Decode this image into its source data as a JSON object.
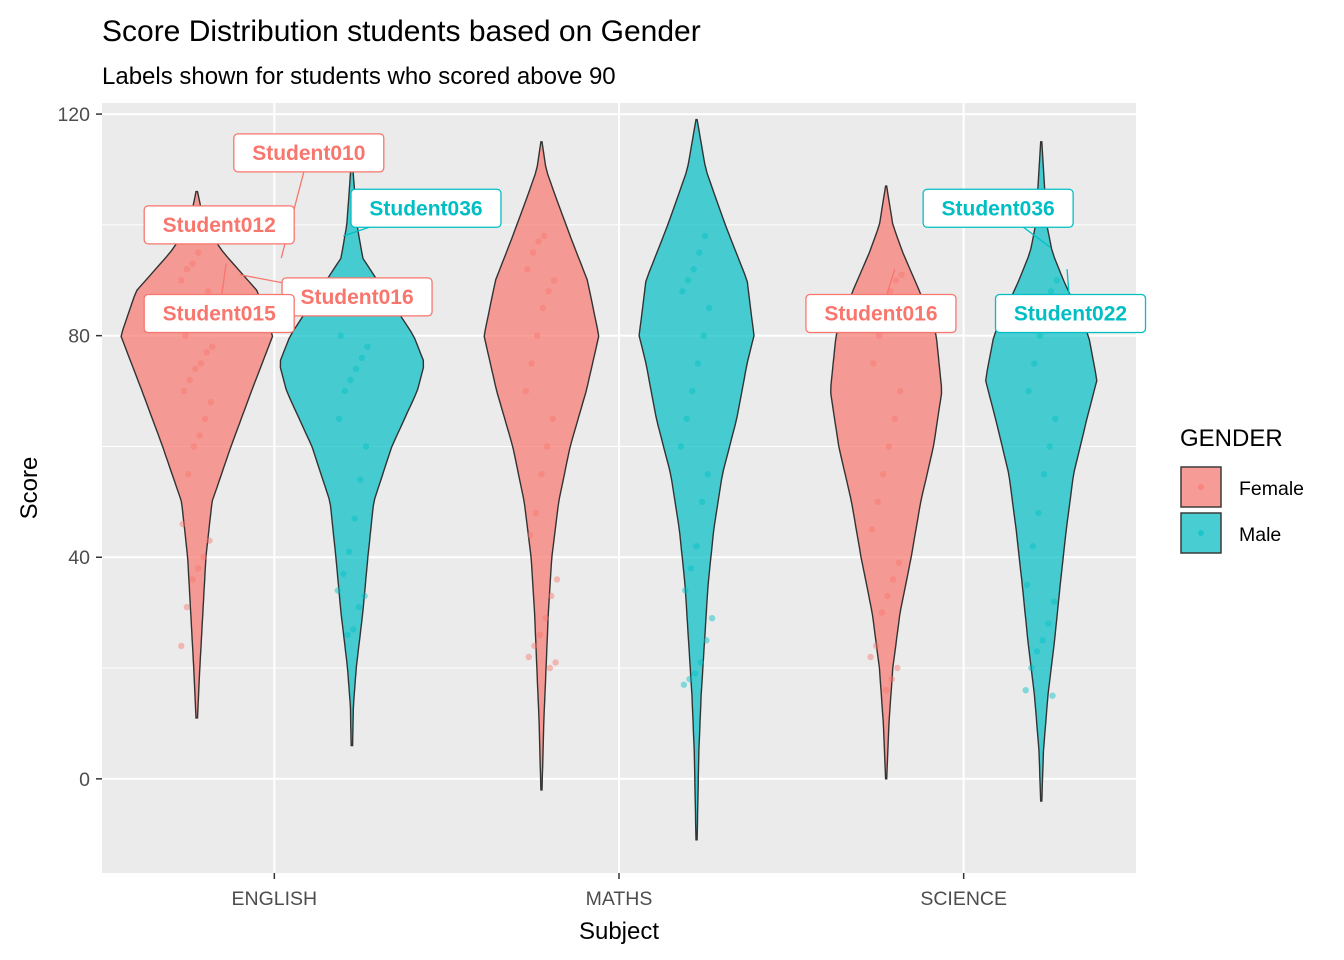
{
  "chart_data": {
    "type": "violin",
    "title": "Score Distribution students based on Gender",
    "subtitle": "Labels shown for students who scored above 90",
    "xlabel": "Subject",
    "ylabel": "Score",
    "categories": [
      "ENGLISH",
      "MATHS",
      "SCIENCE"
    ],
    "ylim": [
      -17,
      122
    ],
    "yticks": [
      0,
      40,
      80,
      120
    ],
    "grid": true,
    "legend": {
      "title": "GENDER",
      "position": "right",
      "entries": [
        {
          "label": "Female",
          "color": "#F8766D"
        },
        {
          "label": "Male",
          "color": "#00BFC4"
        }
      ]
    },
    "series": [
      {
        "name": "Female",
        "color": "#F8766D",
        "violins": [
          {
            "category": "ENGLISH",
            "range": [
              11,
              106
            ],
            "max_width": 0.45,
            "profile": [
              [
                11,
                0.01
              ],
              [
                20,
                0.04
              ],
              [
                30,
                0.08
              ],
              [
                40,
                0.12
              ],
              [
                50,
                0.2
              ],
              [
                60,
                0.45
              ],
              [
                70,
                0.72
              ],
              [
                80,
                1.0
              ],
              [
                88,
                0.8
              ],
              [
                95,
                0.35
              ],
              [
                100,
                0.1
              ],
              [
                106,
                0.01
              ]
            ]
          },
          {
            "category": "MATHS",
            "range": [
              -2,
              115
            ],
            "max_width": 0.34,
            "profile": [
              [
                -2,
                0.01
              ],
              [
                10,
                0.04
              ],
              [
                20,
                0.08
              ],
              [
                30,
                0.12
              ],
              [
                40,
                0.18
              ],
              [
                50,
                0.3
              ],
              [
                60,
                0.5
              ],
              [
                70,
                0.78
              ],
              [
                80,
                1.0
              ],
              [
                90,
                0.8
              ],
              [
                98,
                0.5
              ],
              [
                105,
                0.25
              ],
              [
                110,
                0.08
              ],
              [
                115,
                0.01
              ]
            ]
          },
          {
            "category": "SCIENCE",
            "range": [
              0,
              107
            ],
            "max_width": 0.33,
            "profile": [
              [
                0,
                0.01
              ],
              [
                10,
                0.05
              ],
              [
                20,
                0.12
              ],
              [
                30,
                0.25
              ],
              [
                40,
                0.45
              ],
              [
                50,
                0.62
              ],
              [
                60,
                0.85
              ],
              [
                70,
                1.0
              ],
              [
                80,
                0.9
              ],
              [
                88,
                0.6
              ],
              [
                95,
                0.3
              ],
              [
                100,
                0.12
              ],
              [
                107,
                0.01
              ]
            ]
          }
        ],
        "points": [
          {
            "category": "ENGLISH",
            "values": [
              24,
              31,
              36,
              38,
              40,
              43,
              46,
              55,
              60,
              62,
              65,
              68,
              70,
              72,
              74,
              75,
              77,
              78,
              80,
              82,
              84,
              85,
              88,
              90,
              92,
              93,
              95
            ]
          },
          {
            "category": "MATHS",
            "values": [
              20,
              21,
              22,
              24,
              26,
              29,
              33,
              36,
              44,
              48,
              55,
              60,
              65,
              70,
              75,
              80,
              85,
              88,
              90,
              92,
              95,
              97,
              98
            ]
          },
          {
            "category": "SCIENCE",
            "values": [
              16,
              18,
              20,
              22,
              24,
              30,
              33,
              36,
              39,
              45,
              50,
              55,
              60,
              65,
              70,
              75,
              80,
              85,
              88,
              90,
              91
            ]
          }
        ]
      },
      {
        "name": "Male",
        "color": "#00BFC4",
        "violins": [
          {
            "category": "ENGLISH",
            "range": [
              6,
              111
            ],
            "max_width": 0.43,
            "profile": [
              [
                6,
                0.01
              ],
              [
                13,
                0.02
              ],
              [
                20,
                0.06
              ],
              [
                30,
                0.15
              ],
              [
                40,
                0.22
              ],
              [
                50,
                0.3
              ],
              [
                60,
                0.55
              ],
              [
                70,
                0.9
              ],
              [
                75,
                1.0
              ],
              [
                80,
                0.85
              ],
              [
                88,
                0.45
              ],
              [
                94,
                0.15
              ],
              [
                100,
                0.07
              ],
              [
                111,
                0.01
              ]
            ]
          },
          {
            "category": "MATHS",
            "range": [
              -11,
              119
            ],
            "max_width": 0.34,
            "profile": [
              [
                -11,
                0.01
              ],
              [
                5,
                0.04
              ],
              [
                15,
                0.08
              ],
              [
                25,
                0.14
              ],
              [
                35,
                0.2
              ],
              [
                45,
                0.3
              ],
              [
                55,
                0.45
              ],
              [
                65,
                0.7
              ],
              [
                75,
                0.88
              ],
              [
                80,
                1.0
              ],
              [
                90,
                0.88
              ],
              [
                100,
                0.5
              ],
              [
                110,
                0.16
              ],
              [
                119,
                0.01
              ]
            ]
          },
          {
            "category": "SCIENCE",
            "range": [
              -4,
              115
            ],
            "max_width": 0.33,
            "profile": [
              [
                -4,
                0.01
              ],
              [
                5,
                0.04
              ],
              [
                15,
                0.12
              ],
              [
                25,
                0.24
              ],
              [
                35,
                0.34
              ],
              [
                45,
                0.45
              ],
              [
                55,
                0.58
              ],
              [
                65,
                0.82
              ],
              [
                72,
                1.0
              ],
              [
                80,
                0.85
              ],
              [
                90,
                0.4
              ],
              [
                95,
                0.2
              ],
              [
                100,
                0.1
              ],
              [
                115,
                0.01
              ]
            ]
          }
        ],
        "points": [
          {
            "category": "ENGLISH",
            "values": [
              26,
              27,
              31,
              33,
              34,
              37,
              41,
              47,
              54,
              60,
              65,
              70,
              72,
              74,
              76,
              78,
              80
            ]
          },
          {
            "category": "MATHS",
            "values": [
              17,
              18,
              19,
              21,
              25,
              29,
              34,
              38,
              42,
              50,
              55,
              60,
              65,
              70,
              75,
              80,
              85,
              88,
              90,
              92,
              95,
              98
            ]
          },
          {
            "category": "SCIENCE",
            "values": [
              15,
              16,
              20,
              23,
              25,
              28,
              32,
              35,
              42,
              48,
              55,
              60,
              65,
              70,
              75,
              80,
              85,
              88,
              90
            ]
          }
        ]
      }
    ],
    "annotations": [
      {
        "label": "Student010",
        "series": "Female",
        "category": "ENGLISH",
        "x": 0.1,
        "y": 113,
        "target_x": 0.02,
        "target_y": 94
      },
      {
        "label": "Student012",
        "series": "Female",
        "category": "ENGLISH",
        "x": -0.16,
        "y": 100,
        "target_x": -0.12,
        "target_y": 97
      },
      {
        "label": "Student016",
        "series": "Female",
        "category": "ENGLISH",
        "x": 0.24,
        "y": 87,
        "target_x": -0.1,
        "target_y": 91
      },
      {
        "label": "Student015",
        "series": "Female",
        "category": "ENGLISH",
        "x": -0.16,
        "y": 84,
        "target_x": -0.14,
        "target_y": 93
      },
      {
        "label": "Student036",
        "series": "Male",
        "category": "ENGLISH",
        "x": 0.44,
        "y": 103,
        "target_x": 0.2,
        "target_y": 98
      },
      {
        "label": "Student016",
        "series": "Female",
        "category": "SCIENCE",
        "x": -0.24,
        "y": 84,
        "target_x": -0.2,
        "target_y": 92
      },
      {
        "label": "Student036",
        "series": "Male",
        "category": "SCIENCE",
        "x": 0.1,
        "y": 103,
        "target_x": 0.25,
        "target_y": 96
      },
      {
        "label": "Student022",
        "series": "Male",
        "category": "SCIENCE",
        "x": 0.31,
        "y": 84,
        "target_x": 0.3,
        "target_y": 92
      }
    ]
  }
}
